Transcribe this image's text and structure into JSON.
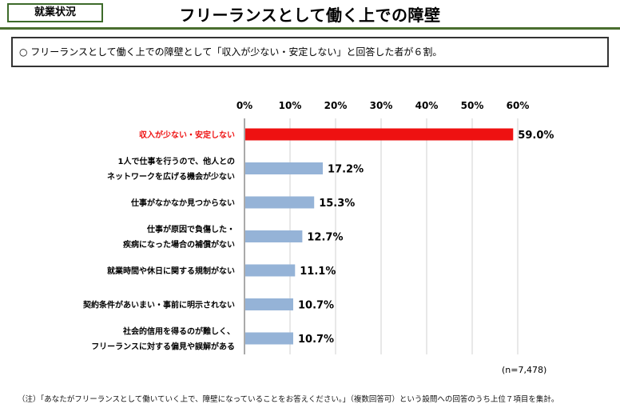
{
  "header": {
    "section_tag": "就業状況",
    "title": "フリーランスとして働く上での障壁"
  },
  "summary": {
    "text": "○ フリーランスとして働く上での障壁として「収入が少ない・安定しない」と回答した者が６割。"
  },
  "chart_data": {
    "type": "bar",
    "orientation": "horizontal",
    "title": "",
    "xlim": [
      0,
      60
    ],
    "xticks": [
      0,
      10,
      20,
      30,
      40,
      50,
      60
    ],
    "xtick_labels": [
      "0%",
      "10%",
      "20%",
      "30%",
      "40%",
      "50%",
      "60%"
    ],
    "categories": [
      [
        "収入が少ない・安定しない"
      ],
      [
        "1人で仕事を行うので、他人との",
        "ネットワークを広げる機会が少ない"
      ],
      [
        "仕事がなかなか見つからない"
      ],
      [
        "仕事が原因で負傷した・",
        "疾病になった場合の補償がない"
      ],
      [
        "就業時間や休日に関する規制がない"
      ],
      [
        "契約条件があいまい・事前に明示されない"
      ],
      [
        "社会的信用を得るのが難しく、",
        "フリーランスに対する偏見や誤解がある"
      ]
    ],
    "values": [
      59.0,
      17.2,
      15.3,
      12.7,
      11.1,
      10.7,
      10.7
    ],
    "value_labels": [
      "59.0%",
      "17.2%",
      "15.3%",
      "12.7%",
      "11.1%",
      "10.7%",
      "10.7%"
    ],
    "highlight_index": 0,
    "colors": {
      "highlight": "#ee1111",
      "bar": "#95b3d7",
      "highlight_label": "#ee1111",
      "label": "#000000",
      "grid": "#d0d0d0"
    },
    "sample_note": "(n=7,478)"
  },
  "footnote": "（注）「あなたがフリーランスとして働いていく上で、障壁になっていることをお答えください。」（複数回答可）という設問への回答のうち上位７項目を集計。"
}
